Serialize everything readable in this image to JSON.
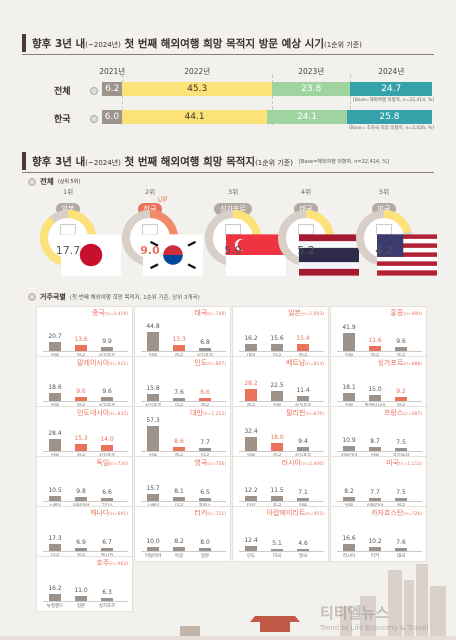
{
  "section1": {
    "title_main": "향후 3년 내",
    "title_paren": "(~2024년)",
    "title_rest": " 첫 번째 해외여행 희망 목적지 방문 예상 시기",
    "title_suffix": "(1순위 기준)"
  },
  "section2": {
    "title_main": "향후 3년 내",
    "title_paren": "(~2024년)",
    "title_rest": " 첫 번째 해외여행 희망 목적지",
    "title_suffix": "(1순위 기준)",
    "base_note": "[Base=해외여행 의향자, n=22,414, %]",
    "subheader": "전체",
    "subheader_note": "(상위 5위)",
    "doodle": "Up"
  },
  "section3": {
    "subheader": "거주국별",
    "subheader_note": "(첫 번째 해외여행 희망 목적지, 1순위 기준, 상위 3개국)"
  },
  "watermark": "티티엘뉴스",
  "watermark_sub": "Trend to Life Economy & Travel",
  "chart_data": [
    {
      "type": "bar",
      "subtype": "stacked-horizontal-100",
      "categories": [
        "전체",
        "한국"
      ],
      "series": [
        {
          "name": "2021년",
          "values": [
            6.2,
            6.0
          ],
          "color": "#9d938b"
        },
        {
          "name": "2022년",
          "values": [
            45.3,
            44.1
          ],
          "color": "#fde27a"
        },
        {
          "name": "2023년",
          "values": [
            23.8,
            24.1
          ],
          "color": "#9fd4a0"
        },
        {
          "name": "2024년",
          "values": [
            24.7,
            25.8
          ],
          "color": "#34a3a9"
        }
      ],
      "notes": [
        "[Base=해외여행 의향자, n=22,414, %]",
        "[Base= 초차국 희망 의향자, n=2,026, %]"
      ]
    },
    {
      "type": "bar",
      "subtype": "ranked-rings",
      "items": [
        {
          "rank": "1위",
          "name": "일본",
          "value": 17.7,
          "flag": "japan",
          "highlight": false
        },
        {
          "rank": "2위",
          "name": "한국",
          "value": 9.0,
          "flag": "korea",
          "highlight": true
        },
        {
          "rank": "3위",
          "name": "싱가포르",
          "value": 5.9,
          "flag": "singapore",
          "highlight": false
        },
        {
          "rank": "4위",
          "name": "태국",
          "value": 5.2,
          "flag": "thailand",
          "highlight": false
        },
        {
          "rank": "5위",
          "name": "미국",
          "value": 4.2,
          "flag": "usa",
          "highlight": false
        }
      ],
      "ring_max": 20
    },
    {
      "type": "bar",
      "subtype": "small-multiples",
      "panels": [
        {
          "country": "중국",
          "n": "(n=4,419)",
          "bars": [
            {
              "label": "일본",
              "value": 20.7
            },
            {
              "label": "한국",
              "value": 13.6,
              "hl": true
            },
            {
              "label": "싱가포르",
              "value": 9.9
            }
          ]
        },
        {
          "country": "태국",
          "n": "(n=748)",
          "bars": [
            {
              "label": "일본",
              "value": 44.8
            },
            {
              "label": "한국",
              "value": 13.3,
              "hl": true
            },
            {
              "label": "싱가포르",
              "value": 6.8
            }
          ]
        },
        {
          "country": "일본",
          "n": "(n=1,603)",
          "bars": [
            {
              "label": "대만",
              "value": 16.2
            },
            {
              "label": "미국",
              "value": 15.6
            },
            {
              "label": "한국",
              "value": 15.4,
              "hl": true
            }
          ]
        },
        {
          "country": "홍콩",
          "n": "(n=900)",
          "bars": [
            {
              "label": "일본",
              "value": 41.9
            },
            {
              "label": "한국",
              "value": 11.6,
              "hl": true
            },
            {
              "label": "중국",
              "value": 9.6
            }
          ]
        },
        {
          "country": "말레이시아",
          "n": "(n=621)",
          "bars": [
            {
              "label": "일본",
              "value": 18.6
            },
            {
              "label": "한국",
              "value": 9.6,
              "hl": true
            },
            {
              "label": "싱가포르",
              "value": 9.6
            }
          ]
        },
        {
          "country": "인도",
          "n": "(n=807)",
          "bars": [
            {
              "label": "싱가포르",
              "value": 15.8
            },
            {
              "label": "미국",
              "value": 7.6
            },
            {
              "label": "한국",
              "value": 6.6,
              "hl": true
            }
          ]
        },
        {
          "country": "베트남",
          "n": "(n=813)",
          "bars": [
            {
              "label": "한국",
              "value": 28.2,
              "hl": true
            },
            {
              "label": "일본",
              "value": 22.5
            },
            {
              "label": "싱가포르",
              "value": 11.4
            }
          ]
        },
        {
          "country": "싱가포르",
          "n": "(n=688)",
          "bars": [
            {
              "label": "일본",
              "value": 18.1
            },
            {
              "label": "말레이시아",
              "value": 15.0
            },
            {
              "label": "한국",
              "value": 9.2,
              "hl": true
            }
          ]
        },
        {
          "country": "인도네시아",
          "n": "(n=835)",
          "bars": [
            {
              "label": "일본",
              "value": 28.4
            },
            {
              "label": "한국",
              "value": 15.3,
              "hl": true
            },
            {
              "label": "싱가포르",
              "value": 14.0,
              "hl": true
            }
          ]
        },
        {
          "country": "대만",
          "n": "(n=1,253)",
          "bars": [
            {
              "label": "일본",
              "value": 57.3
            },
            {
              "label": "한국",
              "value": 8.6,
              "hl": true
            },
            {
              "label": "미국",
              "value": 7.7
            }
          ]
        },
        {
          "country": "필리핀",
          "n": "(n=676)",
          "bars": [
            {
              "label": "일본",
              "value": 32.4
            },
            {
              "label": "한국",
              "value": 18.0,
              "hl": true
            },
            {
              "label": "싱가포르",
              "value": 9.4
            }
          ]
        },
        {
          "country": "프랑스",
          "n": "(n=587)",
          "bars": [
            {
              "label": "이탈리아",
              "value": 10.9
            },
            {
              "label": "일본",
              "value": 8.7
            },
            {
              "label": "포르투갈",
              "value": 7.5
            }
          ]
        },
        {
          "country": "독일",
          "n": "(n=730)",
          "bars": [
            {
              "label": "스페인",
              "value": 10.5
            },
            {
              "label": "이탈리아",
              "value": 9.8
            },
            {
              "label": "그리스",
              "value": 6.6
            }
          ]
        },
        {
          "country": "영국",
          "n": "(n=756)",
          "bars": [
            {
              "label": "스페인",
              "value": 15.7
            },
            {
              "label": "미국",
              "value": 8.1
            },
            {
              "label": "프랑스",
              "value": 6.5
            }
          ]
        },
        {
          "country": "러시아",
          "n": "(n=1,400)",
          "bars": [
            {
              "label": "터키",
              "value": 12.2
            },
            {
              "label": "중국",
              "value": 11.5
            },
            {
              "label": "일본",
              "value": 7.1
            }
          ]
        },
        {
          "country": "미국",
          "n": "(n=1,153)",
          "bars": [
            {
              "label": "일본",
              "value": 8.2
            },
            {
              "label": "이탈리아",
              "value": 7.7
            },
            {
              "label": "영국",
              "value": 7.5
            }
          ]
        },
        {
          "country": "캐나다",
          "n": "(n=691)",
          "bars": [
            {
              "label": "미국",
              "value": 17.3
            },
            {
              "label": "영국",
              "value": 6.9
            },
            {
              "label": "멕시코",
              "value": 6.7
            }
          ]
        },
        {
          "country": "터키",
          "n": "(n=721)",
          "bars": [
            {
              "label": "이탈리아",
              "value": 10.0
            },
            {
              "label": "독일",
              "value": 8.2
            },
            {
              "label": "일본",
              "value": 8.0
            }
          ]
        },
        {
          "country": "아랍에미리트",
          "n": "(n=955)",
          "bars": [
            {
              "label": "인도",
              "value": 12.4
            },
            {
              "label": "미국",
              "value": 5.1
            },
            {
              "label": "영국",
              "value": 4.6
            }
          ]
        },
        {
          "country": "카자흐스탄",
          "n": "(n=726)",
          "bars": [
            {
              "label": "러시아",
              "value": 16.6
            },
            {
              "label": "터키",
              "value": 10.2
            },
            {
              "label": "태국",
              "value": 7.6
            }
          ]
        },
        {
          "country": "호주",
          "n": "(n=962)",
          "bars": [
            {
              "label": "뉴질랜드",
              "value": 16.2
            },
            {
              "label": "일본",
              "value": 11.0
            },
            {
              "label": "싱가포르",
              "value": 6.3
            }
          ]
        }
      ]
    }
  ]
}
